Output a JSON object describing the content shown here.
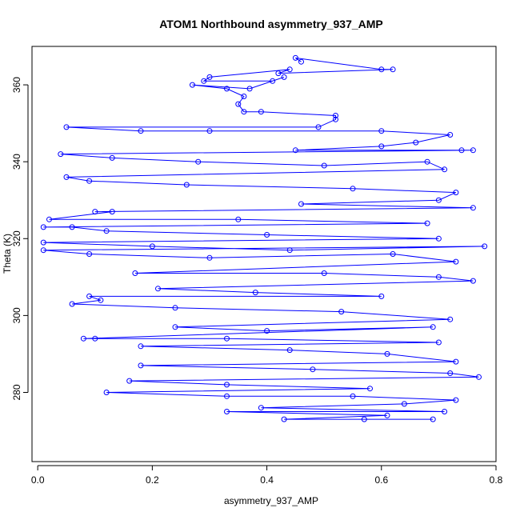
{
  "chart_data": {
    "type": "scatter",
    "title": "ATOM1 Northbound asymmetry_937_AMP",
    "xlabel": "asymmetry_937_AMP",
    "ylabel": "Theta (K)",
    "xlim": [
      -0.01,
      0.8
    ],
    "ylim": [
      262,
      370
    ],
    "xticks": [
      "0.0",
      "0.2",
      "0.4",
      "0.6",
      "0.8"
    ],
    "xtick_values": [
      0.0,
      0.2,
      0.4,
      0.6,
      0.8
    ],
    "yticks": [
      "280",
      "300",
      "320",
      "340",
      "360"
    ],
    "ytick_values": [
      280,
      300,
      320,
      340,
      360
    ],
    "grid": false,
    "marker": "open-circle",
    "connected": true,
    "color": "#0000ff",
    "series": [
      {
        "values_description_free": true,
        "points": [
          [
            0.46,
            366
          ],
          [
            0.45,
            367
          ],
          [
            0.6,
            364
          ],
          [
            0.62,
            364
          ],
          [
            0.42,
            363
          ],
          [
            0.44,
            364
          ],
          [
            0.3,
            362
          ],
          [
            0.29,
            361
          ],
          [
            0.41,
            361
          ],
          [
            0.43,
            362
          ],
          [
            0.37,
            359
          ],
          [
            0.27,
            360
          ],
          [
            0.33,
            359
          ],
          [
            0.36,
            357
          ],
          [
            0.35,
            355
          ],
          [
            0.36,
            353
          ],
          [
            0.39,
            353
          ],
          [
            0.52,
            352
          ],
          [
            0.52,
            351
          ],
          [
            0.49,
            349
          ],
          [
            0.05,
            349
          ],
          [
            0.18,
            348
          ],
          [
            0.3,
            348
          ],
          [
            0.6,
            348
          ],
          [
            0.72,
            347
          ],
          [
            0.66,
            345
          ],
          [
            0.6,
            344
          ],
          [
            0.45,
            343
          ],
          [
            0.74,
            343
          ],
          [
            0.76,
            343
          ],
          [
            0.04,
            342
          ],
          [
            0.13,
            341
          ],
          [
            0.28,
            340
          ],
          [
            0.5,
            339
          ],
          [
            0.68,
            340
          ],
          [
            0.71,
            338
          ],
          [
            0.05,
            336
          ],
          [
            0.09,
            335
          ],
          [
            0.26,
            334
          ],
          [
            0.55,
            333
          ],
          [
            0.73,
            332
          ],
          [
            0.7,
            330
          ],
          [
            0.46,
            329
          ],
          [
            0.76,
            328
          ],
          [
            0.1,
            327
          ],
          [
            0.13,
            327
          ],
          [
            0.02,
            325
          ],
          [
            0.35,
            325
          ],
          [
            0.68,
            324
          ],
          [
            0.01,
            323
          ],
          [
            0.06,
            323
          ],
          [
            0.12,
            322
          ],
          [
            0.4,
            321
          ],
          [
            0.7,
            320
          ],
          [
            0.01,
            319
          ],
          [
            0.2,
            318
          ],
          [
            0.44,
            317
          ],
          [
            0.78,
            318
          ],
          [
            0.01,
            317
          ],
          [
            0.09,
            316
          ],
          [
            0.3,
            315
          ],
          [
            0.62,
            316
          ],
          [
            0.73,
            314
          ],
          [
            0.17,
            311
          ],
          [
            0.5,
            311
          ],
          [
            0.7,
            310
          ],
          [
            0.76,
            309
          ],
          [
            0.21,
            307
          ],
          [
            0.38,
            306
          ],
          [
            0.6,
            305
          ],
          [
            0.09,
            305
          ],
          [
            0.11,
            304
          ],
          [
            0.06,
            303
          ],
          [
            0.24,
            302
          ],
          [
            0.53,
            301
          ],
          [
            0.72,
            299
          ],
          [
            0.24,
            297
          ],
          [
            0.4,
            296
          ],
          [
            0.69,
            297
          ],
          [
            0.08,
            294
          ],
          [
            0.1,
            294
          ],
          [
            0.33,
            294
          ],
          [
            0.7,
            293
          ],
          [
            0.18,
            292
          ],
          [
            0.44,
            291
          ],
          [
            0.61,
            290
          ],
          [
            0.73,
            288
          ],
          [
            0.18,
            287
          ],
          [
            0.48,
            286
          ],
          [
            0.72,
            285
          ],
          [
            0.77,
            284
          ],
          [
            0.16,
            283
          ],
          [
            0.33,
            282
          ],
          [
            0.58,
            281
          ],
          [
            0.12,
            280
          ],
          [
            0.33,
            279
          ],
          [
            0.55,
            279
          ],
          [
            0.73,
            278
          ],
          [
            0.64,
            277
          ],
          [
            0.39,
            276
          ],
          [
            0.71,
            275
          ],
          [
            0.33,
            275
          ],
          [
            0.61,
            274
          ],
          [
            0.43,
            273
          ],
          [
            0.69,
            273
          ],
          [
            0.57,
            273
          ]
        ]
      }
    ]
  }
}
